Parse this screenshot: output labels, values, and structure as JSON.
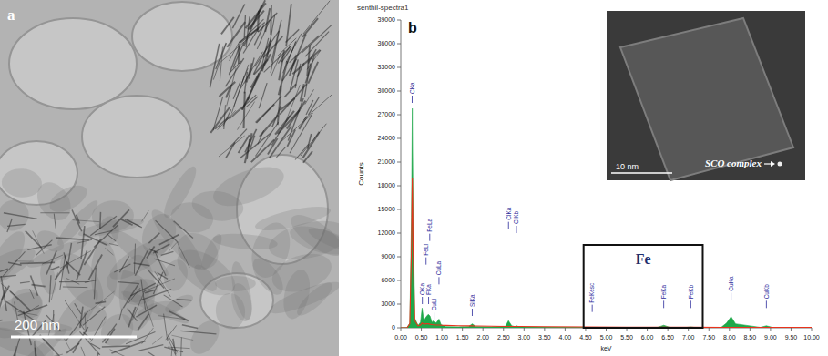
{
  "panel_a": {
    "letter": "a",
    "scale_bar": "200 nm"
  },
  "chart_data": {
    "type": "line",
    "panel_letter": "b",
    "title": "senthil-spectra1",
    "x_label": "keV",
    "y_label": "Counts",
    "xlim": [
      0,
      10
    ],
    "ylim": [
      0,
      39000
    ],
    "xticks": [
      {
        "value": 0,
        "label": "0.00"
      },
      {
        "value": 0.5,
        "label": "0.50"
      },
      {
        "value": 1,
        "label": "1.00"
      },
      {
        "value": 1.5,
        "label": "1.50"
      },
      {
        "value": 2,
        "label": "2.00"
      },
      {
        "value": 2.5,
        "label": "2.50"
      },
      {
        "value": 3,
        "label": "3.00"
      },
      {
        "value": 3.5,
        "label": "3.50"
      },
      {
        "value": 4,
        "label": "4.00"
      },
      {
        "value": 4.5,
        "label": "4.50"
      },
      {
        "value": 5,
        "label": "5.00"
      },
      {
        "value": 5.5,
        "label": "5.50"
      },
      {
        "value": 6,
        "label": "6.00"
      },
      {
        "value": 6.5,
        "label": "6.50"
      },
      {
        "value": 7,
        "label": "7.00"
      },
      {
        "value": 7.5,
        "label": "7.50"
      },
      {
        "value": 8,
        "label": "8.00"
      },
      {
        "value": 8.5,
        "label": "8.50"
      },
      {
        "value": 9,
        "label": "9.00"
      },
      {
        "value": 9.5,
        "label": "9.50"
      },
      {
        "value": 10,
        "label": "10.00"
      }
    ],
    "yticks": [
      0,
      3000,
      6000,
      9000,
      12000,
      15000,
      18000,
      21000,
      24000,
      27000,
      30000,
      33000,
      36000,
      39000
    ],
    "grid": false,
    "x": [
      0.0,
      0.15,
      0.22,
      0.26,
      0.28,
      0.3,
      0.34,
      0.42,
      0.48,
      0.52,
      0.56,
      0.62,
      0.67,
      0.71,
      0.76,
      0.8,
      0.86,
      0.93,
      0.98,
      1.1,
      1.4,
      1.65,
      1.74,
      1.83,
      2.2,
      2.55,
      2.62,
      2.7,
      2.78,
      2.82,
      2.88,
      3.5,
      4.5,
      5.5,
      6.25,
      6.4,
      6.55,
      6.95,
      7.06,
      7.15,
      7.8,
      7.93,
      8.04,
      8.15,
      8.75,
      8.9,
      9.05,
      9.6,
      10.0
    ],
    "series": [
      {
        "type": "area",
        "color": "#1fa84a",
        "values": [
          0,
          0,
          600,
          14000,
          27800,
          15000,
          1200,
          300,
          700,
          2500,
          900,
          1400,
          1700,
          1500,
          700,
          900,
          600,
          1100,
          400,
          150,
          120,
          150,
          500,
          150,
          120,
          200,
          900,
          250,
          150,
          250,
          120,
          80,
          60,
          50,
          60,
          320,
          60,
          50,
          110,
          50,
          60,
          600,
          1400,
          500,
          60,
          250,
          50,
          40,
          30
        ]
      },
      {
        "type": "line",
        "color": "#e8331c",
        "values": [
          0,
          0,
          500,
          10000,
          19000,
          10000,
          900,
          250,
          350,
          600,
          450,
          500,
          500,
          450,
          400,
          380,
          350,
          340,
          320,
          300,
          260,
          240,
          240,
          230,
          200,
          180,
          180,
          175,
          170,
          170,
          165,
          140,
          110,
          90,
          80,
          80,
          78,
          70,
          70,
          68,
          60,
          60,
          58,
          57,
          50,
          50,
          48,
          45,
          40
        ]
      }
    ],
    "annotations": [
      {
        "text": "CKa",
        "x": 0.277,
        "y": 28500
      },
      {
        "text": "OKa",
        "x": 0.525,
        "y": 3000
      },
      {
        "text": "FeLl",
        "x": 0.615,
        "y": 8000
      },
      {
        "text": "FKa",
        "x": 0.677,
        "y": 3000
      },
      {
        "text": "FeLa",
        "x": 0.705,
        "y": 11000
      },
      {
        "text": "CuLl",
        "x": 0.811,
        "y": 1000
      },
      {
        "text": "CuLa",
        "x": 0.93,
        "y": 5500
      },
      {
        "text": "SiKa",
        "x": 1.74,
        "y": 1500
      },
      {
        "text": "ClKa",
        "x": 2.622,
        "y": 12500
      },
      {
        "text": "ClKb",
        "x": 2.815,
        "y": 12000
      },
      {
        "text": "FeKesc",
        "x": 4.66,
        "y": 2000
      },
      {
        "text": "FeKa",
        "x": 6.4,
        "y": 2500
      },
      {
        "text": "FeKb",
        "x": 7.06,
        "y": 2500
      },
      {
        "text": "CuKa",
        "x": 8.04,
        "y": 3500
      },
      {
        "text": "CuKb",
        "x": 8.9,
        "y": 2500
      }
    ],
    "highlight": {
      "label": "Fe",
      "xlim": [
        4.45,
        7.35
      ],
      "ylim": [
        0,
        10500
      ]
    },
    "inset": {
      "scale_bar": "10 nm",
      "label": "SCO complex"
    }
  }
}
